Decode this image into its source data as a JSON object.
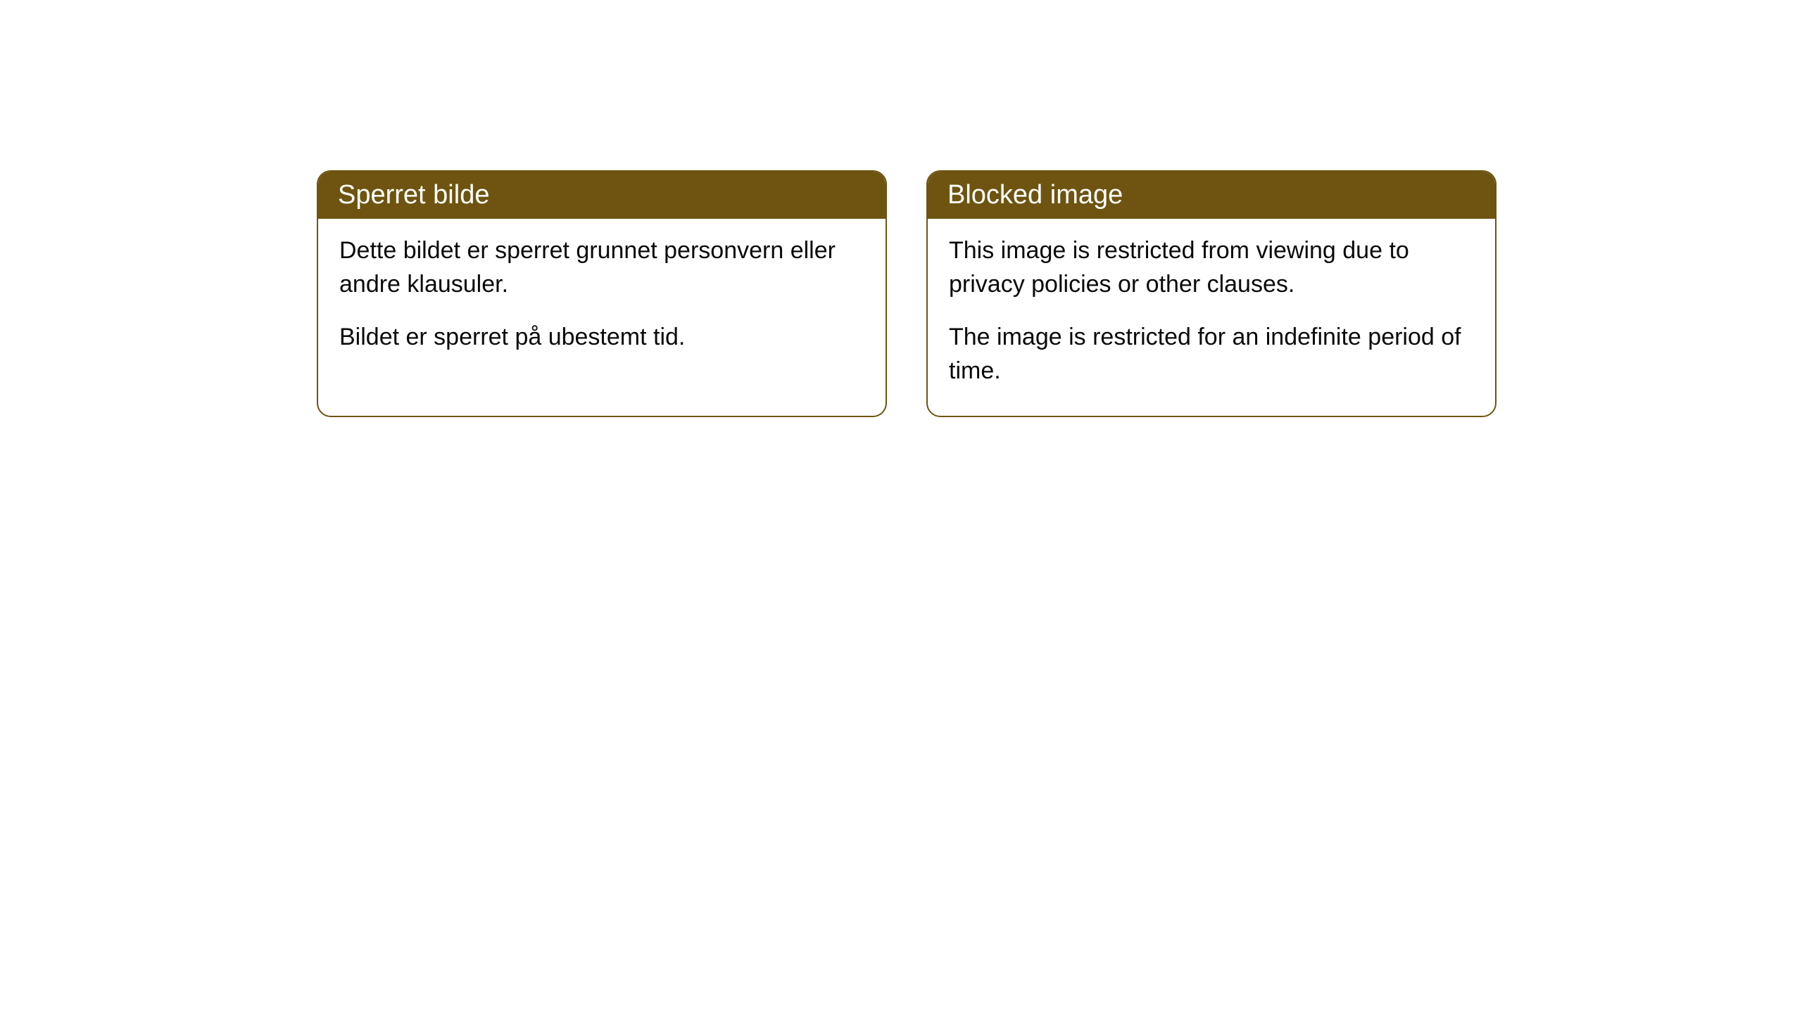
{
  "cards": [
    {
      "title": "Sperret bilde",
      "paragraph1": "Dette bildet er sperret grunnet personvern eller andre klausuler.",
      "paragraph2": "Bildet er sperret på ubestemt tid."
    },
    {
      "title": "Blocked image",
      "paragraph1": "This image is restricted from viewing due to privacy policies or other clauses.",
      "paragraph2": "The image is restricted for an indefinite period of time."
    }
  ],
  "styling": {
    "header_background": "#6e5410",
    "header_text_color": "#ffffff",
    "border_color": "#6e5410",
    "body_background": "#ffffff",
    "body_text_color": "#0a0a0a",
    "border_radius": 20,
    "title_fontsize": 38,
    "body_fontsize": 34
  }
}
